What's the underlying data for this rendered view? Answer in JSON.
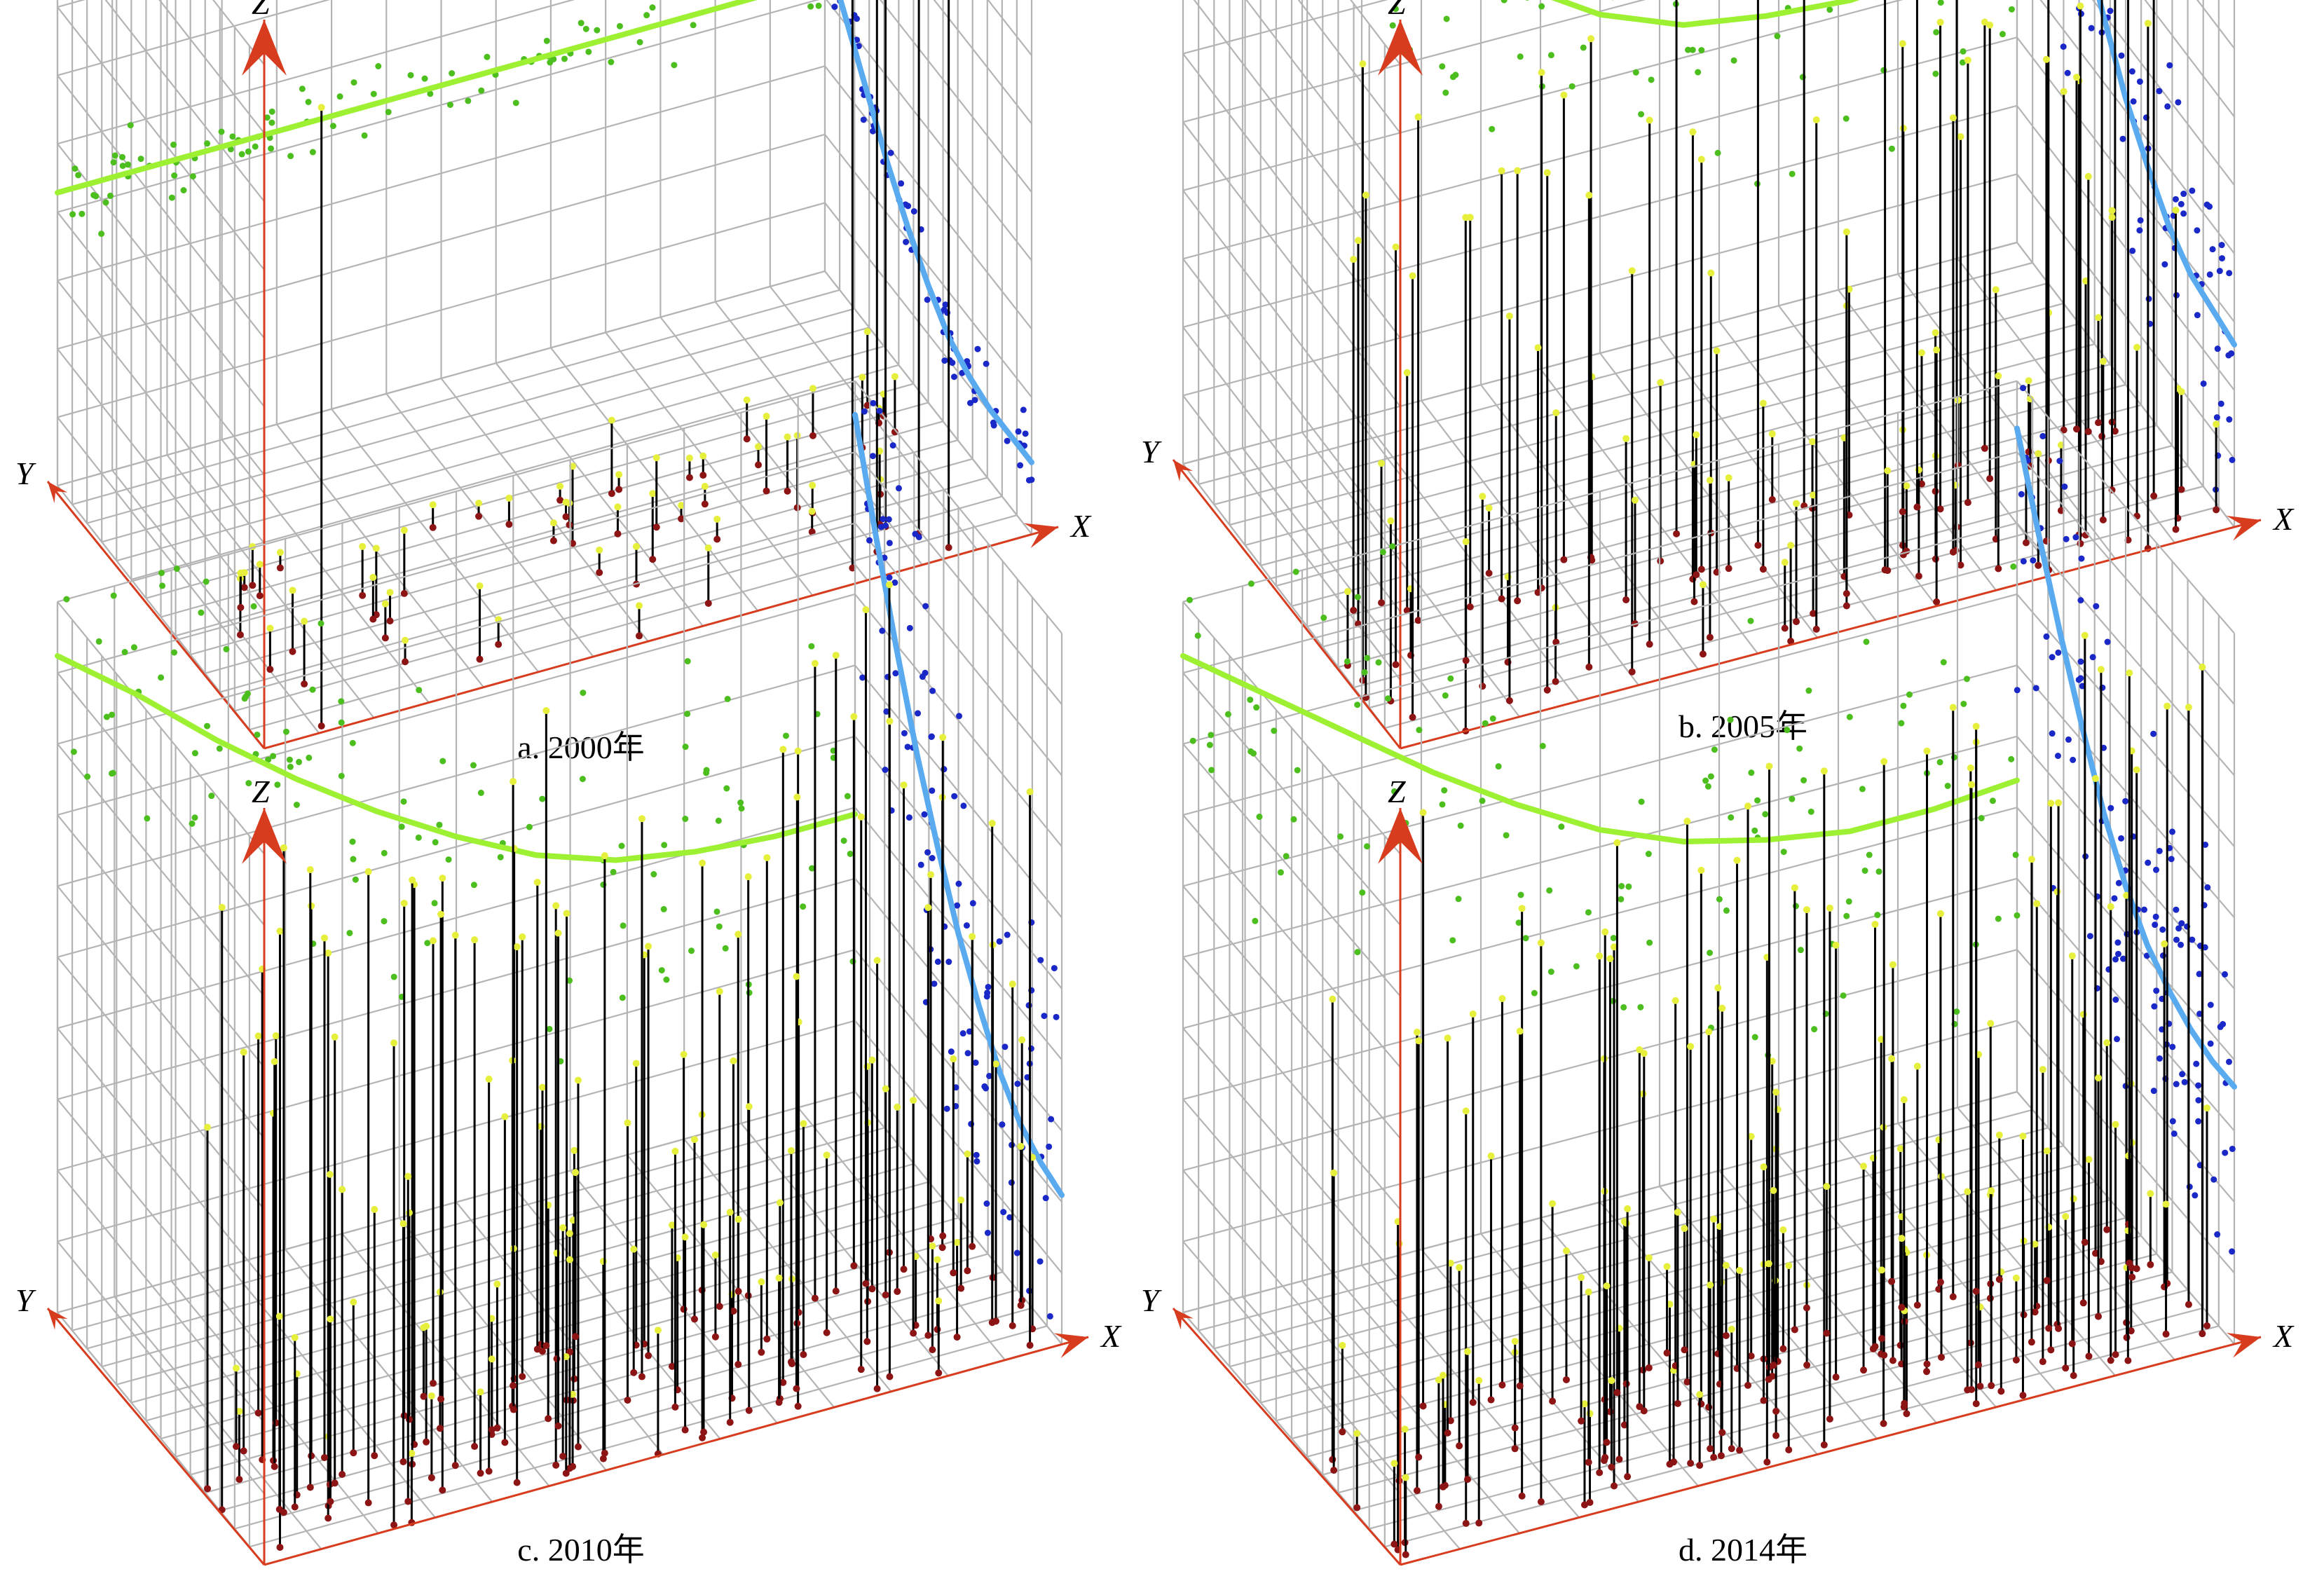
{
  "figure": {
    "panels": [
      "a",
      "b",
      "c",
      "d"
    ]
  },
  "chart_data": [
    {
      "id": "a",
      "type": "scatter",
      "title": "a. 2000年",
      "axis_labels": {
        "x": "X",
        "y": "Y",
        "z": "Z"
      },
      "grid": true,
      "colors": {
        "green": "#4cbe1e",
        "blue": "#1a28c8",
        "trend_green": "#9ef032",
        "trend_blue": "#5aaaf0",
        "stem": "#000000",
        "base": "#8c1414",
        "tip": "#e6f03c",
        "axis": "#d73c1e",
        "grid": "#b4b4b4"
      },
      "green_trend_z": [
        0.45,
        0.45,
        0.45,
        0.45,
        0.45,
        0.45,
        0.45,
        0.45,
        0.45,
        0.45,
        0.45
      ],
      "blue_trend_z": [
        0.5,
        0.43,
        0.36,
        0.29,
        0.23,
        0.18,
        0.14,
        0.12,
        0.11,
        0.11,
        0.11
      ],
      "seed": 11,
      "n_green": 90,
      "n_blue": 70,
      "n_stems": 55,
      "green_spread": 0.06,
      "blue_spread": 0.06,
      "tall_stems": [
        [
          0.08,
          0.02,
          0.95
        ],
        [
          0.78,
          0.05,
          0.95
        ],
        [
          0.82,
          0.08,
          0.93
        ],
        [
          0.88,
          0.1,
          0.92
        ],
        [
          0.85,
          0.15,
          0.9
        ],
        [
          0.9,
          0.03,
          0.94
        ]
      ],
      "stem_max": 0.12,
      "stem_min": 0.02,
      "stem_region": {
        "x": [
          0.05,
          0.95
        ],
        "y": [
          0.0,
          0.55
        ]
      }
    },
    {
      "id": "b",
      "type": "scatter",
      "title": "b. 2005年",
      "axis_labels": {
        "x": "X",
        "y": "Y",
        "z": "Z"
      },
      "grid": true,
      "colors": {
        "green": "#4cbe1e",
        "blue": "#1a28c8",
        "trend_green": "#9ef032",
        "trend_blue": "#5aaaf0",
        "stem": "#000000",
        "base": "#8c1414",
        "tip": "#e6f03c",
        "axis": "#d73c1e",
        "grid": "#b4b4b4"
      },
      "green_trend_z": [
        1.0,
        0.9,
        0.79,
        0.69,
        0.6,
        0.52,
        0.47,
        0.45,
        0.44,
        0.45,
        0.48
      ],
      "blue_trend_z": [
        0.98,
        0.85,
        0.72,
        0.61,
        0.52,
        0.44,
        0.38,
        0.33,
        0.3,
        0.29,
        0.28
      ],
      "seed": 23,
      "n_green": 110,
      "n_blue": 100,
      "n_stems": 110,
      "green_spread": 0.2,
      "blue_spread": 0.25,
      "tall_stems": [],
      "stem_max": 0.95,
      "stem_min": 0.1,
      "stem_region": {
        "x": [
          0.0,
          1.0
        ],
        "y": [
          0.0,
          0.45
        ]
      }
    },
    {
      "id": "c",
      "type": "scatter",
      "title": "c. 2010年",
      "axis_labels": {
        "x": "X",
        "y": "Y",
        "z": "Z"
      },
      "grid": true,
      "colors": {
        "green": "#4cbe1e",
        "blue": "#1a28c8",
        "trend_green": "#9ef032",
        "trend_blue": "#5aaaf0",
        "stem": "#000000",
        "base": "#8c1414",
        "tip": "#e6f03c",
        "axis": "#d73c1e",
        "grid": "#b4b4b4"
      },
      "green_trend_z": [
        0.97,
        0.88,
        0.78,
        0.69,
        0.61,
        0.54,
        0.48,
        0.44,
        0.42,
        0.41,
        0.41
      ],
      "blue_trend_z": [
        1.0,
        0.86,
        0.73,
        0.61,
        0.51,
        0.42,
        0.35,
        0.29,
        0.25,
        0.23,
        0.22
      ],
      "seed": 37,
      "n_green": 120,
      "n_blue": 110,
      "n_stems": 150,
      "green_spread": 0.25,
      "blue_spread": 0.3,
      "tall_stems": [],
      "stem_max": 1.0,
      "stem_min": 0.1,
      "stem_region": {
        "x": [
          0.0,
          1.0
        ],
        "y": [
          0.0,
          0.5
        ]
      }
    },
    {
      "id": "d",
      "type": "scatter",
      "title": "d. 2014年",
      "axis_labels": {
        "x": "X",
        "y": "Y",
        "z": "Z"
      },
      "grid": true,
      "colors": {
        "green": "#4cbe1e",
        "blue": "#1a28c8",
        "trend_green": "#9ef032",
        "trend_blue": "#5aaaf0",
        "stem": "#000000",
        "base": "#8c1414",
        "tip": "#e6f03c",
        "axis": "#d73c1e",
        "grid": "#b4b4b4"
      },
      "green_trend_z": [
        0.97,
        0.88,
        0.79,
        0.7,
        0.62,
        0.55,
        0.5,
        0.47,
        0.45,
        0.45,
        0.46
      ],
      "blue_trend_z": [
        0.98,
        0.86,
        0.75,
        0.65,
        0.56,
        0.49,
        0.44,
        0.41,
        0.39,
        0.38,
        0.38
      ],
      "seed": 53,
      "n_green": 130,
      "n_blue": 120,
      "n_stems": 170,
      "green_spread": 0.3,
      "blue_spread": 0.32,
      "tall_stems": [],
      "stem_max": 1.0,
      "stem_min": 0.1,
      "stem_region": {
        "x": [
          0.0,
          1.0
        ],
        "y": [
          0.0,
          0.5
        ]
      }
    }
  ]
}
